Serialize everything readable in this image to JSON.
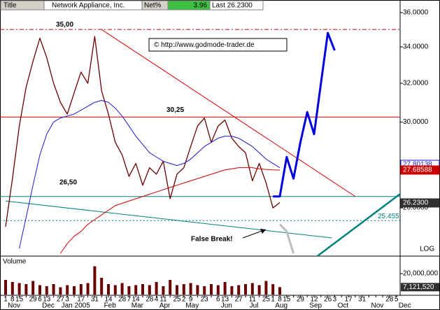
{
  "chart_data": {
    "type": "line",
    "log_scale": true,
    "header": {
      "title_label": "Title",
      "name": "Network Appliance, Inc.",
      "net_label": "Net%",
      "net_value": 3.96,
      "last": "Last 26.2300"
    },
    "watermark": "© http://www.godmode-trader.de",
    "annotation": "False Break!",
    "scale_note": "LOG",
    "categories": [
      "1",
      "8",
      "15",
      null,
      "29",
      "6",
      "13",
      null,
      "27",
      "3",
      null,
      "17",
      null,
      "31",
      null,
      "14",
      null,
      "28",
      "7",
      "14",
      null,
      "28",
      "4",
      "11",
      null,
      "25",
      "2",
      "9",
      null,
      "23",
      null,
      "6",
      "13",
      null,
      "27",
      null,
      "11",
      null,
      "25",
      "1",
      "8",
      "15",
      null,
      "29",
      null,
      "12",
      null,
      "26",
      "3",
      null,
      "17",
      null,
      "31",
      null,
      null,
      null,
      "28",
      "5"
    ],
    "month_labels": [
      "Nov",
      null,
      null,
      null,
      null,
      "Dec",
      null,
      null,
      null,
      "Jan 2005",
      null,
      null,
      null,
      null,
      "Feb",
      null,
      null,
      null,
      "Mar",
      null,
      null,
      null,
      "Apr",
      null,
      null,
      null,
      "May",
      null,
      null,
      null,
      null,
      "Jun",
      null,
      null,
      null,
      "Jul",
      null,
      null,
      null,
      "Aug",
      null,
      null,
      null,
      null,
      "Sep",
      null,
      null,
      null,
      "Oct",
      null,
      null,
      null,
      null,
      "Nov",
      null,
      null,
      null,
      "Dec"
    ],
    "ylim": [
      24.02,
      36.55
    ],
    "yticks": [
      {
        "value": 26,
        "label": "26.0000"
      },
      {
        "value": 28,
        "label": "28.0000"
      },
      {
        "value": 30,
        "label": "30.0000"
      },
      {
        "value": 32,
        "label": "32.0000"
      },
      {
        "value": 34,
        "label": "34.0000"
      },
      {
        "value": 36,
        "label": "36.0000"
      }
    ],
    "series": [
      {
        "color": "#6b0000",
        "width": 1.3,
        "values": [
          25.2,
          27.3,
          29.8,
          31.8,
          33.2,
          34.5,
          33.4,
          32.0,
          31.0,
          30.4,
          31.5,
          32.6,
          32.0,
          34.6,
          31.6,
          30.4,
          29.0,
          28.4,
          27.4,
          28.0,
          27.0,
          27.8,
          27.5,
          28.1,
          26.4,
          27.5,
          27.8,
          28.8,
          29.8,
          30.2,
          29.0,
          29.8,
          30.1,
          29.2,
          28.8,
          28.5,
          27.2,
          28.0,
          27.1,
          26.0,
          26.23,
          null,
          null,
          null,
          null,
          null,
          null,
          null,
          null,
          null,
          null,
          null,
          null,
          null,
          null,
          null,
          null,
          null
        ]
      },
      {
        "color": "#1a1acc",
        "width": 1,
        "values": [
          null,
          null,
          24.3,
          25.6,
          27.0,
          28.4,
          29.4,
          30.0,
          30.2,
          30.3,
          30.4,
          30.6,
          30.8,
          31.0,
          31.1,
          31.0,
          30.7,
          30.3,
          29.8,
          29.3,
          28.9,
          28.5,
          28.3,
          28.1,
          28.0,
          27.9,
          28.0,
          28.2,
          28.5,
          28.8,
          29.0,
          29.2,
          29.3,
          29.3,
          29.2,
          29.0,
          28.8,
          28.5,
          28.2,
          28.0,
          27.8,
          null,
          null,
          null,
          null,
          null,
          null,
          null,
          null,
          null,
          null,
          null,
          null,
          null,
          null,
          null,
          null,
          null
        ]
      },
      {
        "color": "#cc0000",
        "width": 1,
        "values": [
          null,
          null,
          null,
          null,
          null,
          null,
          null,
          null,
          24.1,
          24.5,
          24.8,
          25.0,
          25.3,
          25.5,
          25.7,
          25.9,
          26.1,
          26.2,
          26.3,
          26.4,
          26.5,
          26.6,
          26.7,
          26.8,
          26.9,
          27.0,
          27.1,
          27.2,
          27.3,
          27.4,
          27.5,
          27.6,
          27.7,
          27.75,
          27.8,
          27.8,
          27.8,
          27.75,
          27.72,
          27.7,
          27.69,
          null,
          null,
          null,
          null,
          null,
          null,
          null,
          null,
          null,
          null,
          null,
          null,
          null,
          null,
          null,
          null,
          null
        ]
      },
      {
        "color": "#0000e0",
        "width": 3,
        "values": [
          null,
          null,
          null,
          null,
          null,
          null,
          null,
          null,
          null,
          null,
          null,
          null,
          null,
          null,
          null,
          null,
          null,
          null,
          null,
          null,
          null,
          null,
          null,
          null,
          null,
          null,
          null,
          null,
          null,
          null,
          null,
          null,
          null,
          null,
          null,
          null,
          null,
          null,
          null,
          26.5,
          26.5,
          28.3,
          27.3,
          29.0,
          30.5,
          29.4,
          32.0,
          34.8,
          33.8,
          null,
          null,
          null,
          null,
          null,
          null,
          null,
          null,
          null
        ]
      },
      {
        "color": "#bbbbbb",
        "width": 3,
        "values": [
          null,
          null,
          null,
          null,
          null,
          null,
          null,
          null,
          null,
          null,
          null,
          null,
          null,
          null,
          null,
          null,
          null,
          null,
          null,
          null,
          null,
          null,
          null,
          null,
          null,
          null,
          null,
          null,
          null,
          null,
          null,
          null,
          null,
          null,
          null,
          null,
          null,
          null,
          null,
          null,
          25.3,
          25.0,
          24.1,
          null,
          null,
          null,
          null,
          null,
          null,
          null,
          null,
          null,
          null,
          null,
          null,
          null,
          null,
          null
        ]
      }
    ],
    "hlines": [
      {
        "value": 35,
        "label": "35,00",
        "color": "#cc0000",
        "style": "dashed"
      },
      {
        "value": 30.25,
        "label": "30,25",
        "color": "#cc0000",
        "style": "solid"
      },
      {
        "value": 26.5,
        "label": "26,50",
        "color": "#008080",
        "style": "solid"
      },
      {
        "value": 25.455,
        "label": "25.455",
        "color": "#008080",
        "style": "dotted"
      }
    ],
    "trendlines": [
      {
        "x": [
          14,
          51
        ],
        "y": [
          35,
          26.5
        ],
        "color": "#e00000",
        "width": 1
      },
      {
        "x": [
          0,
          47.6
        ],
        "y": [
          26.3,
          24.73
        ],
        "color": "#008080",
        "width": 1
      },
      {
        "x": [
          45.5,
          57.5
        ],
        "y": [
          24.0,
          26.6
        ],
        "color": "#008080",
        "width": 2.5
      }
    ],
    "price_tags": [
      {
        "value": 27.80138,
        "color": "#1a1acc",
        "text_color": "#1a1acc",
        "fill": "#ffffff"
      },
      {
        "value": 27.68588,
        "color": "#cc0000",
        "text_color": "#ffffff",
        "fill": "#cc0000"
      },
      {
        "value": 26.23,
        "label": "26.2300",
        "color": "#303030",
        "text_color": "#ffffff",
        "fill": "#303030"
      }
    ],
    "volume": {
      "title": "Volume",
      "color": "#6b0000",
      "values": [
        14000000,
        12000000,
        11000000,
        10000000,
        13000000,
        9000000,
        8000000,
        10000000,
        7000000,
        9000000,
        8000000,
        10000000,
        11000000,
        27000000,
        16000000,
        10000000,
        9000000,
        11000000,
        8000000,
        9000000,
        10000000,
        9000000,
        12000000,
        8000000,
        14000000,
        9000000,
        10000000,
        11000000,
        9000000,
        8000000,
        10000000,
        9000000,
        12000000,
        8000000,
        9000000,
        10000000,
        11000000,
        9000000,
        13000000,
        10000000,
        7121520,
        null,
        null,
        null,
        null,
        null,
        null,
        null,
        null,
        null,
        null,
        null,
        null,
        null,
        null,
        null,
        null,
        null
      ],
      "ylim": [
        0,
        36000000
      ],
      "yticks": [
        {
          "value": 20000000,
          "label": "20,000,000"
        }
      ],
      "last_tag": {
        "value": 7121520,
        "label": "7,121,520"
      }
    }
  }
}
